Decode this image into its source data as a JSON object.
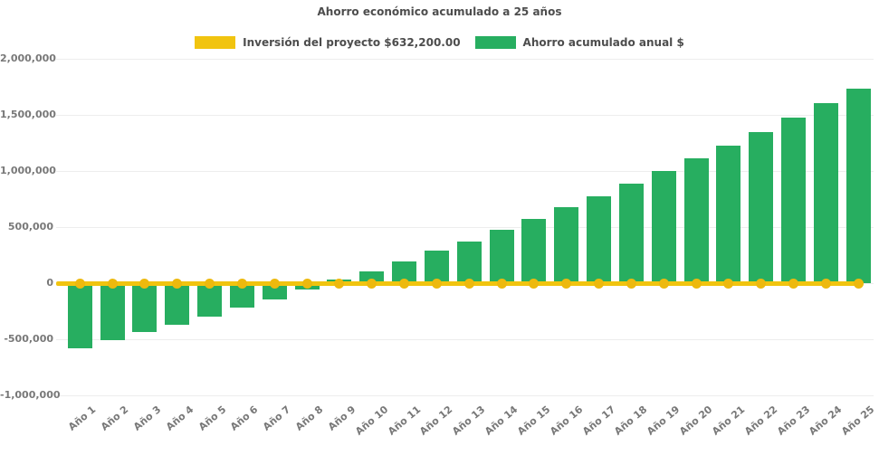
{
  "title": "Ahorro económico acumulado a 25 años",
  "legend": {
    "items": [
      {
        "label": "Inversión del proyecto $632,200.00",
        "color": "#F1C40F",
        "series": "line"
      },
      {
        "label": "Ahorro acumulado anual $",
        "color": "#27AE60",
        "series": "bar"
      }
    ]
  },
  "colors": {
    "bar": "#27AE60",
    "line": "#F1C40F",
    "dot": "#EDB90E",
    "axis_text": "#787878",
    "title_text": "#4D4D4D",
    "grid": "#EDEDED",
    "background": "#FFFFFF"
  },
  "y_axis": {
    "ticks": [
      {
        "label": "2,000,000",
        "value": 2000000
      },
      {
        "label": "1,500,000",
        "value": 1500000
      },
      {
        "label": "1,000,000",
        "value": 1000000
      },
      {
        "label": "500,000",
        "value": 500000
      },
      {
        "label": "0",
        "value": 0
      },
      {
        "label": "-500,000",
        "value": -500000
      },
      {
        "label": "-1,000,000",
        "value": -1000000
      }
    ]
  },
  "chart_data": {
    "type": "bar",
    "title": "Ahorro económico acumulado a 25 años",
    "categories": [
      "Año 1",
      "Año 2",
      "Año 3",
      "Año 4",
      "Año 5",
      "Año 6",
      "Año 7",
      "Año 8",
      "Año 9",
      "Año 10",
      "Año 11",
      "Año 12",
      "Año 13",
      "Año 14",
      "Año 15",
      "Año 16",
      "Año 17",
      "Año 18",
      "Año 19",
      "Año 20",
      "Año 21",
      "Año 22",
      "Año 23",
      "Año 24",
      "Año 25"
    ],
    "series": [
      {
        "name": "Ahorro acumulado anual $",
        "type": "bar",
        "color": "#27AE60",
        "values": [
          -580000,
          -508000,
          -438000,
          -370000,
          -301000,
          -221000,
          -142000,
          -58000,
          31000,
          103000,
          191000,
          287000,
          374000,
          476000,
          575000,
          676000,
          778000,
          886000,
          998000,
          1113000,
          1228000,
          1347000,
          1476000,
          1604000,
          1730000
        ]
      },
      {
        "name": "Inversión del proyecto $632,200.00",
        "type": "line",
        "color": "#F1C40F",
        "marker": "circle",
        "values": [
          0,
          0,
          0,
          0,
          0,
          0,
          0,
          0,
          0,
          0,
          0,
          0,
          0,
          0,
          0,
          0,
          0,
          0,
          0,
          0,
          0,
          0,
          0,
          0,
          0
        ]
      }
    ],
    "investment_amount_label": "$632,200.00",
    "xlabel": "",
    "ylabel": "",
    "ylim": [
      -1000000,
      2000000
    ],
    "yticks": [
      2000000,
      1500000,
      1000000,
      500000,
      0,
      -500000,
      -1000000
    ],
    "grid": "horizontal-faint",
    "legend_position": "top-center"
  }
}
